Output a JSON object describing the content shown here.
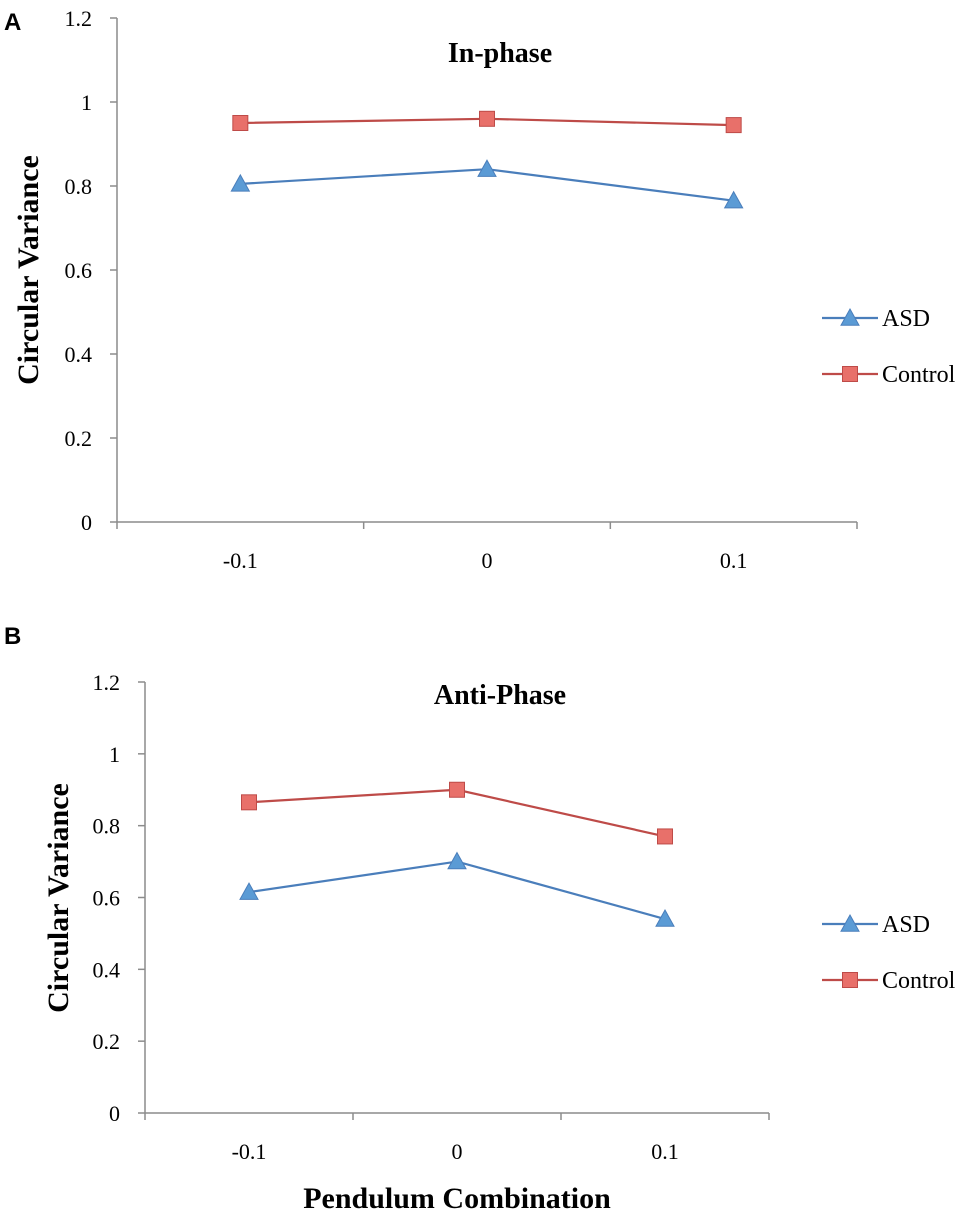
{
  "colors": {
    "asd": "#4a7ebb",
    "control": "#be4b48",
    "asd_fill": "#5b9bd5",
    "control_fill": "#e8706a"
  },
  "chart_data": [
    {
      "panel": "A",
      "type": "line",
      "title": "In-phase",
      "xlabel": "",
      "ylabel": "Circular  Variance",
      "categories": [
        "-0.1",
        "0",
        "0.1"
      ],
      "ylim": [
        0,
        1.2
      ],
      "yticks": [
        "0",
        "0.2",
        "0.4",
        "0.6",
        "0.8",
        "1",
        "1.2"
      ],
      "legend_position": "right",
      "series": [
        {
          "name": "ASD",
          "marker": "triangle",
          "values": [
            0.805,
            0.84,
            0.765
          ]
        },
        {
          "name": "Control",
          "marker": "square",
          "values": [
            0.95,
            0.96,
            0.945
          ]
        }
      ]
    },
    {
      "panel": "B",
      "type": "line",
      "title": "Anti-Phase",
      "xlabel": "Pendulum Combination",
      "ylabel": "Circular Variance",
      "categories": [
        "-0.1",
        "0",
        "0.1"
      ],
      "ylim": [
        0,
        1.2
      ],
      "yticks": [
        "0",
        "0.2",
        "0.4",
        "0.6",
        "0.8",
        "1",
        "1.2"
      ],
      "legend_position": "right",
      "series": [
        {
          "name": "ASD",
          "marker": "triangle",
          "values": [
            0.615,
            0.7,
            0.54
          ]
        },
        {
          "name": "Control",
          "marker": "square",
          "values": [
            0.865,
            0.9,
            0.77
          ]
        }
      ]
    }
  ]
}
